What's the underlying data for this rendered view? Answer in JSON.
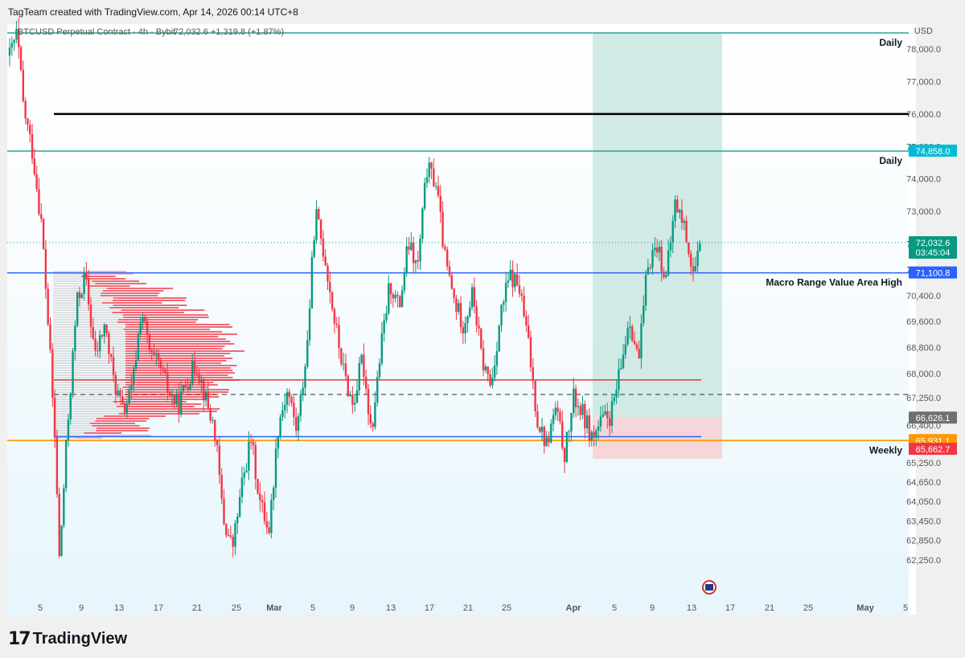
{
  "header": {
    "created_by": "TagTeam created with TradingView.com, Apr 14, 2026 00:14 UTC+8"
  },
  "legend": {
    "symbol": "BTCUSD Perpetual Contract · 4h · Bybit",
    "price": "72,032.6",
    "change": "+1,319.8 (+1.87%)",
    "price_color": "#089981"
  },
  "axis": {
    "currency": "USD"
  },
  "footer": {
    "brand": "TradingView",
    "brand_mark": "17"
  },
  "colors": {
    "up": "#089981",
    "down": "#f23645",
    "daily": "#26a69a",
    "macro": "#2962ff",
    "weekly": "#ff9800",
    "black_line": "#000000",
    "red_line": "#e53935",
    "profit_zone": "#cfe9e5",
    "loss_zone": "#f7d4d8",
    "volume_profile": "#f23645"
  },
  "chart_data": {
    "type": "candlestick",
    "timeframe": "4h",
    "ylim": [
      61800,
      78500
    ],
    "y_ticks": [
      "78,000.0",
      "77,000.0",
      "76,000.0",
      "75,000.0",
      "74,000.0",
      "73,000.0",
      "72,000.0",
      "71,200.0",
      "70,400.0",
      "69,600.0",
      "68,800.0",
      "68,000.0",
      "67,250.0",
      "66,400.0",
      "65,250.0",
      "64,650.0",
      "64,050.0",
      "63,450.0",
      "62,850.0",
      "62,250.0"
    ],
    "x_ticks": [
      "5",
      "9",
      "13",
      "17",
      "21",
      "25",
      "Mar",
      "5",
      "9",
      "13",
      "17",
      "21",
      "25",
      "Apr",
      "5",
      "9",
      "13",
      "17",
      "21",
      "25",
      "May",
      "5"
    ],
    "price_path": [
      {
        "t": 0,
        "p": 77800
      },
      {
        "t": 0.8,
        "p": 78500
      },
      {
        "t": 1.5,
        "p": 76200
      },
      {
        "t": 2.5,
        "p": 74800
      },
      {
        "t": 3.5,
        "p": 72500
      },
      {
        "t": 4.3,
        "p": 69000
      },
      {
        "t": 5,
        "p": 65500
      },
      {
        "t": 5.4,
        "p": 62200
      },
      {
        "t": 6.2,
        "p": 66000
      },
      {
        "t": 7.3,
        "p": 70200
      },
      {
        "t": 8.2,
        "p": 71000
      },
      {
        "t": 9.3,
        "p": 68500
      },
      {
        "t": 10.3,
        "p": 69500
      },
      {
        "t": 11.3,
        "p": 67800
      },
      {
        "t": 12.3,
        "p": 66800
      },
      {
        "t": 13.3,
        "p": 67500
      },
      {
        "t": 14.3,
        "p": 70000
      },
      {
        "t": 15.3,
        "p": 68500
      },
      {
        "t": 16.3,
        "p": 68200
      },
      {
        "t": 17.3,
        "p": 67400
      },
      {
        "t": 18.3,
        "p": 67000
      },
      {
        "t": 19.3,
        "p": 67800
      },
      {
        "t": 20.3,
        "p": 68300
      },
      {
        "t": 21.3,
        "p": 67200
      },
      {
        "t": 22.3,
        "p": 66200
      },
      {
        "t": 23.2,
        "p": 63500
      },
      {
        "t": 24.2,
        "p": 62600
      },
      {
        "t": 25.2,
        "p": 64500
      },
      {
        "t": 26.2,
        "p": 66000
      },
      {
        "t": 27.2,
        "p": 64000
      },
      {
        "t": 28.2,
        "p": 63200
      },
      {
        "t": 29.2,
        "p": 66500
      },
      {
        "t": 30.2,
        "p": 67500
      },
      {
        "t": 31.2,
        "p": 66200
      },
      {
        "t": 32.3,
        "p": 68800
      },
      {
        "t": 33.2,
        "p": 73000
      },
      {
        "t": 34.3,
        "p": 71500
      },
      {
        "t": 35.3,
        "p": 69600
      },
      {
        "t": 36.3,
        "p": 68000
      },
      {
        "t": 37.3,
        "p": 67000
      },
      {
        "t": 38.3,
        "p": 68500
      },
      {
        "t": 39.3,
        "p": 66200
      },
      {
        "t": 40.3,
        "p": 68700
      },
      {
        "t": 41.3,
        "p": 70800
      },
      {
        "t": 42.3,
        "p": 70000
      },
      {
        "t": 43.3,
        "p": 72000
      },
      {
        "t": 44.3,
        "p": 71200
      },
      {
        "t": 45.3,
        "p": 74300
      },
      {
        "t": 46.3,
        "p": 73900
      },
      {
        "t": 47.3,
        "p": 71500
      },
      {
        "t": 48.3,
        "p": 70200
      },
      {
        "t": 49.3,
        "p": 69500
      },
      {
        "t": 50.3,
        "p": 70500
      },
      {
        "t": 51.3,
        "p": 68400
      },
      {
        "t": 52.3,
        "p": 67600
      },
      {
        "t": 53.3,
        "p": 69800
      },
      {
        "t": 54.3,
        "p": 71000
      },
      {
        "t": 55.3,
        "p": 70700
      },
      {
        "t": 56.3,
        "p": 69000
      },
      {
        "t": 57.3,
        "p": 66600
      },
      {
        "t": 58.3,
        "p": 65800
      },
      {
        "t": 59.3,
        "p": 66900
      },
      {
        "t": 60.3,
        "p": 65500
      },
      {
        "t": 61.3,
        "p": 67300
      },
      {
        "t": 62.3,
        "p": 66700
      },
      {
        "t": 63.3,
        "p": 66000
      },
      {
        "t": 64.3,
        "p": 66500
      },
      {
        "t": 65.3,
        "p": 66700
      },
      {
        "t": 66.3,
        "p": 68000
      },
      {
        "t": 67.3,
        "p": 69800
      },
      {
        "t": 68.3,
        "p": 68300
      },
      {
        "t": 69.3,
        "p": 71400
      },
      {
        "t": 70.3,
        "p": 72000
      },
      {
        "t": 71.3,
        "p": 70900
      },
      {
        "t": 72.3,
        "p": 73300
      },
      {
        "t": 73.3,
        "p": 72500
      },
      {
        "t": 74.3,
        "p": 71000
      },
      {
        "t": 75.2,
        "p": 72032.6
      }
    ],
    "levels": [
      {
        "name": "Daily",
        "price": 78500,
        "style": "cyan",
        "label": "Daily",
        "badge": ""
      },
      {
        "name": "Black resistance",
        "price": 76000,
        "style": "black",
        "label": "",
        "badge": ""
      },
      {
        "name": "Daily",
        "price": 74858.0,
        "style": "cyan",
        "label": "Daily",
        "badge": "74,858.0"
      },
      {
        "name": "Macro Range Value Area High",
        "price": 71100.8,
        "style": "blue",
        "label": "Macro Range Value Area High",
        "badge": "71,100.8"
      },
      {
        "name": "Red line",
        "price": 67800,
        "style": "red",
        "label": "",
        "badge": ""
      },
      {
        "name": "Dashed",
        "price": 67350,
        "style": "dashed",
        "label": "",
        "badge": ""
      },
      {
        "name": "Blue low",
        "price": 66050,
        "style": "blue",
        "label": "",
        "badge": ""
      },
      {
        "name": "Weekly",
        "price": 65931.1,
        "style": "orange",
        "label": "Weekly",
        "badge": "65,931.1"
      }
    ],
    "badges": [
      {
        "text": "72,032.6",
        "sub": "03:45:04",
        "price": 72032.6,
        "color": "#089981"
      },
      {
        "text": "66,626.1",
        "price": 66626.1,
        "color": "#707070"
      },
      {
        "text": "65,662.7",
        "price": 65662.7,
        "color": "#f23645"
      }
    ],
    "position": {
      "entry": 66626.1,
      "target": 78500,
      "stop": 65662.7
    },
    "volume_profile_note": ""
  }
}
